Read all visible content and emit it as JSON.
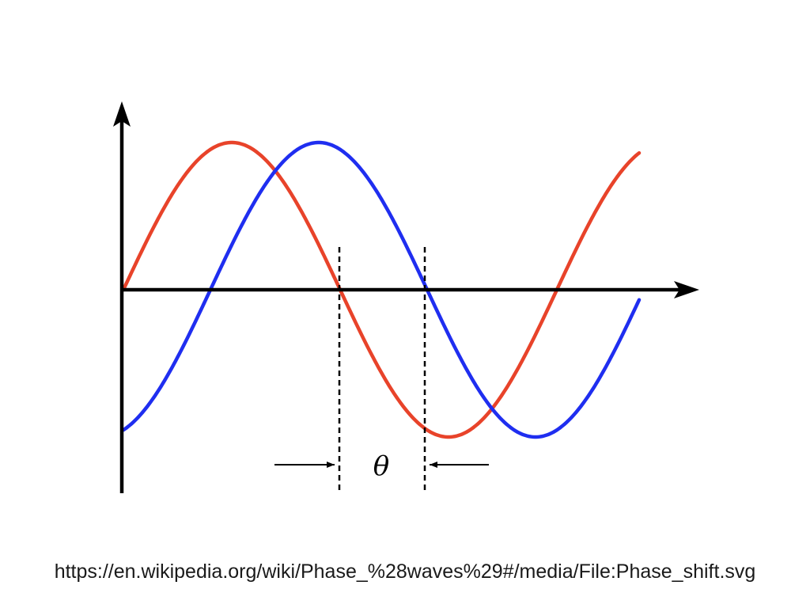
{
  "diagram": {
    "phase_label": "θ",
    "colors": {
      "axes": "#000000",
      "red_wave": "#e8432a",
      "blue_wave": "#1f2ef0"
    },
    "arrowheads": [
      "x-axis-arrow-icon",
      "y-axis-arrow-icon"
    ]
  },
  "caption": {
    "source_url": "https://en.wikipedia.org/wiki/Phase_%28waves%29#/media/File:Phase_shift.svg"
  }
}
